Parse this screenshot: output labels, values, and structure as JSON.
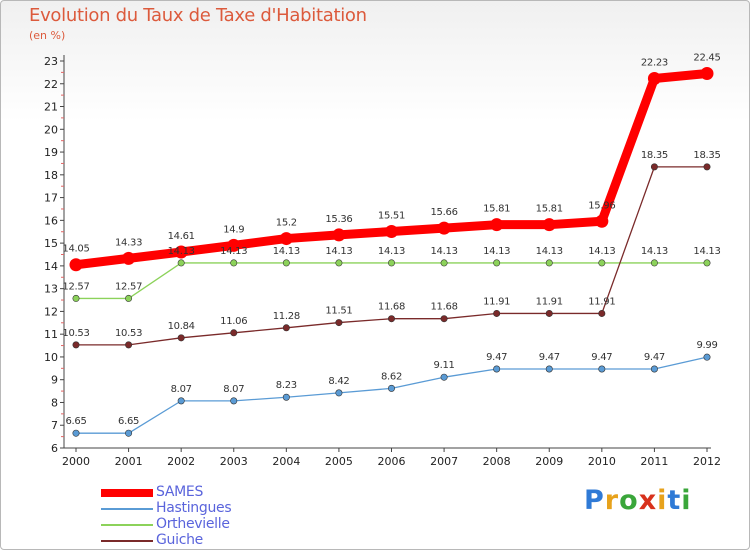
{
  "title": "Evolution du Taux de Taxe d'Habitation",
  "subtitle": "(en %)",
  "logo": {
    "letters": [
      "P",
      "r",
      "o",
      "x",
      "i",
      "t",
      "i"
    ],
    "colors": [
      "#2f7ad6",
      "#e7a21c",
      "#3aa63a",
      "#d8311c",
      "#e7a21c",
      "#2f7ad6",
      "#3aa63a"
    ]
  },
  "chart_data": {
    "type": "line",
    "title": "Evolution du Taux de Taxe d'Habitation",
    "ylabel": "(en %)",
    "xlabel": "",
    "x": [
      "2000",
      "2001",
      "2002",
      "2003",
      "2004",
      "2005",
      "2006",
      "2007",
      "2008",
      "2009",
      "2010",
      "2011",
      "2012"
    ],
    "ylim": [
      6,
      23
    ],
    "yticks": [
      "6",
      "7",
      "8",
      "9",
      "10",
      "11",
      "12",
      "13",
      "14",
      "15",
      "16",
      "17",
      "18",
      "19",
      "20",
      "21",
      "22",
      "23"
    ],
    "grid": false,
    "legend_position": "bottom-left",
    "series": [
      {
        "name": "SAMES",
        "color": "#ff0000",
        "values": [
          14.05,
          14.33,
          14.61,
          14.9,
          15.2,
          15.36,
          15.51,
          15.66,
          15.81,
          15.81,
          15.96,
          22.23,
          22.45
        ],
        "labels": [
          "14.05",
          "14.33",
          "14.61",
          "14.9",
          "15.2",
          "15.36",
          "15.51",
          "15.66",
          "15.81",
          "15.81",
          "15.96",
          "22.23",
          "22.45"
        ]
      },
      {
        "name": "Hastingues",
        "color": "#5a9bd5",
        "values": [
          6.65,
          6.65,
          8.07,
          8.07,
          8.23,
          8.42,
          8.62,
          9.11,
          9.47,
          9.47,
          9.47,
          9.47,
          9.99
        ],
        "labels": [
          "6.65",
          "6.65",
          "8.07",
          "8.07",
          "8.23",
          "8.42",
          "8.62",
          "9.11",
          "9.47",
          "9.47",
          "9.47",
          "9.47",
          "9.99"
        ]
      },
      {
        "name": "Orthevielle",
        "color": "#8cd25a",
        "values": [
          12.57,
          12.57,
          14.13,
          14.13,
          14.13,
          14.13,
          14.13,
          14.13,
          14.13,
          14.13,
          14.13,
          14.13,
          14.13
        ],
        "labels": [
          "12.57",
          "12.57",
          "14.13",
          "14.13",
          "14.13",
          "14.13",
          "14.13",
          "14.13",
          "14.13",
          "14.13",
          "14.13",
          "14.13",
          "14.13"
        ]
      },
      {
        "name": "Guiche",
        "color": "#7a2a2a",
        "values": [
          10.53,
          10.53,
          10.84,
          11.06,
          11.28,
          11.51,
          11.68,
          11.68,
          11.91,
          11.91,
          11.91,
          18.35,
          18.35
        ],
        "labels": [
          "10.53",
          "10.53",
          "10.84",
          "11.06",
          "11.28",
          "11.51",
          "11.68",
          "11.68",
          "11.91",
          "11.91",
          "11.91",
          "18.35",
          "18.35"
        ]
      }
    ]
  }
}
